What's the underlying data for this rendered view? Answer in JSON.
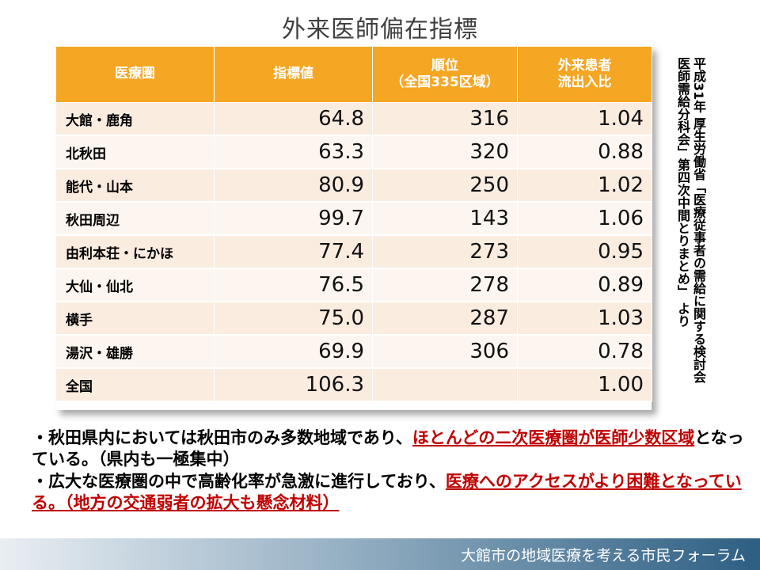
{
  "title": "外来医師偏在指標",
  "table": {
    "headers": {
      "col1": "医療圏",
      "col2": "指標値",
      "col3_line1": "順位",
      "col3_line2": "（全国335区域）",
      "col4_line1": "外来患者",
      "col4_line2": "流出入比"
    },
    "rows": [
      {
        "name": "大館・鹿角",
        "value": "64.8",
        "rank": "316",
        "ratio": "1.04"
      },
      {
        "name": "北秋田",
        "value": "63.3",
        "rank": "320",
        "ratio": "0.88"
      },
      {
        "name": "能代・山本",
        "value": "80.9",
        "rank": "250",
        "ratio": "1.02"
      },
      {
        "name": "秋田周辺",
        "value": "99.7",
        "rank": "143",
        "ratio": "1.06"
      },
      {
        "name": "由利本荘・にかほ",
        "value": "77.4",
        "rank": "273",
        "ratio": "0.95"
      },
      {
        "name": "大仙・仙北",
        "value": "76.5",
        "rank": "278",
        "ratio": "0.89"
      },
      {
        "name": "横手",
        "value": "75.0",
        "rank": "287",
        "ratio": "1.03"
      },
      {
        "name": "湯沢・雄勝",
        "value": "69.9",
        "rank": "306",
        "ratio": "0.78"
      },
      {
        "name": "全国",
        "value": "106.3",
        "rank": "",
        "ratio": "1.00"
      }
    ]
  },
  "source_note": "平成31年 厚生労働省「医療従事者の需給に関する検討会医師需給分科会」第四次中間とりまとめ」 より",
  "notes": {
    "p1_a": "・秋田県内においては秋田市のみ多数地域であり、",
    "p1_red": "ほとんどの二次医療圏が医師少数区域",
    "p1_b": "となっている。（県内も一極集中）",
    "p2_a": "・広大な医療圏の中で高齢化率が急激に進行しており、",
    "p2_red": "医療へのアクセスがより困難となっている。（地方の交通弱者の拡大も懸念材料）"
  },
  "footer": "大館市の地域医療を考える市民フォーラム"
}
